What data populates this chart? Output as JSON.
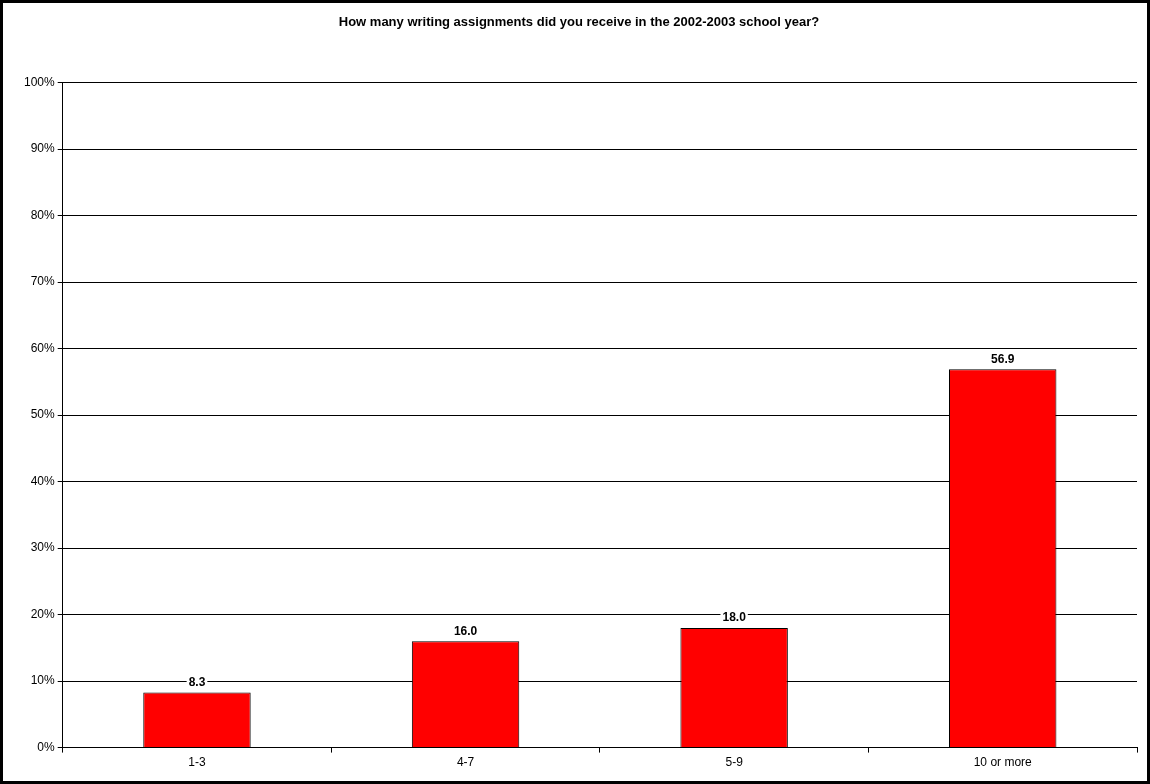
{
  "chart_data": {
    "type": "bar",
    "title": "How many writing assignments did you receive in the 2002-2003 school year?",
    "categories": [
      "1-3",
      "4-7",
      "5-9",
      "10 or more"
    ],
    "values": [
      8.3,
      16.0,
      18.0,
      56.9
    ],
    "value_labels": [
      "8.3",
      "16.0",
      "18.0",
      "56.9"
    ],
    "color": "#ff0000",
    "ylim": [
      0,
      100
    ],
    "yticks": [
      {
        "value": 0,
        "label": "0%"
      },
      {
        "value": 10,
        "label": "10%"
      },
      {
        "value": 20,
        "label": "20%"
      },
      {
        "value": 30,
        "label": "30%"
      },
      {
        "value": 40,
        "label": "40%"
      },
      {
        "value": 50,
        "label": "50%"
      },
      {
        "value": 60,
        "label": "60%"
      },
      {
        "value": 70,
        "label": "70%"
      },
      {
        "value": 80,
        "label": "80%"
      },
      {
        "value": 90,
        "label": "90%"
      },
      {
        "value": 100,
        "label": "100%"
      }
    ],
    "grid": "y",
    "legend": false
  }
}
